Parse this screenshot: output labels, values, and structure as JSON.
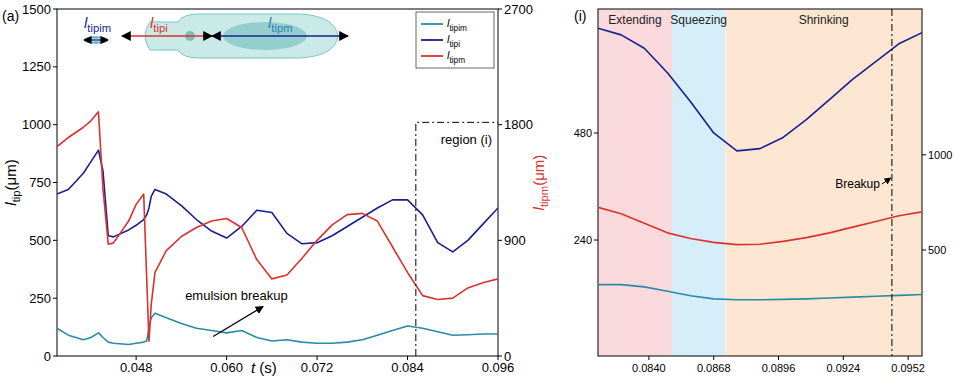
{
  "chart_data": [
    {
      "type": "line",
      "title": "(a)",
      "x_label": "t (s)",
      "y_label": "ltip(μm)",
      "y2_label": "ltipm(μm)",
      "xlim": [
        0.0375,
        0.096
      ],
      "xticks": [
        0.048,
        {
          "value": 0.06,
          "label": "0.060"
        },
        0.072,
        0.084,
        0.096
      ],
      "ylim": [
        0,
        1500
      ],
      "yticks": [
        0,
        250,
        500,
        750,
        1000,
        1250,
        1500
      ],
      "y2lim": [
        0,
        2700
      ],
      "y2ticks": [
        0,
        900,
        1800,
        2700
      ],
      "legend": "upper right",
      "schematic_labels": [
        "ltipim",
        "ltipi",
        "ltipm"
      ],
      "annotations": [
        {
          "text": "emulsion breakup",
          "x": 0.0545,
          "y": 240
        }
      ],
      "region": {
        "label": "region (i)",
        "x": 0.0851,
        "y": 1010
      },
      "x": [
        0.0375,
        0.039,
        0.041,
        0.042,
        0.043,
        0.0436,
        0.0443,
        0.045,
        0.047,
        0.048,
        0.049,
        0.0494,
        0.0497,
        0.05,
        0.0505,
        0.052,
        0.054,
        0.056,
        0.058,
        0.06,
        0.062,
        0.064,
        0.066,
        0.068,
        0.07,
        0.072,
        0.074,
        0.076,
        0.078,
        0.08,
        0.082,
        0.084,
        0.086,
        0.088,
        0.09,
        0.092,
        0.094,
        0.096
      ],
      "series": [
        {
          "name": "ltipim",
          "color": "#2a8ba8",
          "values": [
            120,
            90,
            70,
            80,
            100,
            80,
            60,
            55,
            50,
            55,
            60,
            65,
            120,
            165,
            185,
            165,
            140,
            120,
            110,
            100,
            110,
            80,
            65,
            70,
            60,
            55,
            55,
            60,
            70,
            90,
            110,
            130,
            120,
            105,
            90,
            92,
            95,
            95
          ]
        },
        {
          "name": "ltipi",
          "color": "#1a1f8f",
          "values": [
            700,
            720,
            790,
            840,
            890,
            800,
            520,
            515,
            545,
            565,
            590,
            610,
            640,
            690,
            720,
            700,
            650,
            590,
            540,
            510,
            560,
            630,
            620,
            530,
            485,
            490,
            520,
            560,
            600,
            640,
            675,
            675,
            610,
            490,
            450,
            500,
            570,
            640
          ]
        },
        {
          "name": "ltipm",
          "color": "#d9332f",
          "axis": "y2",
          "values": [
            1630,
            1700,
            1780,
            1830,
            1900,
            1300,
            870,
            880,
            1050,
            1180,
            1260,
            600,
            115,
            400,
            650,
            820,
            930,
            1000,
            1050,
            1070,
            1000,
            750,
            600,
            630,
            760,
            900,
            1020,
            1100,
            1110,
            1050,
            850,
            650,
            470,
            440,
            450,
            530,
            570,
            600
          ]
        }
      ]
    },
    {
      "type": "line",
      "title": "(i)",
      "xlim": [
        0.0818,
        0.0958
      ],
      "xticks": [
        {
          "value": 0.084,
          "label": "0.0840"
        },
        0.0868,
        0.0896,
        0.0924,
        0.0952
      ],
      "ylim": [
        -20,
        758
      ],
      "yticks": [
        240,
        480
      ],
      "y2lim": [
        -57,
        1766
      ],
      "y2ticks": [
        500,
        1000
      ],
      "regions": [
        {
          "label": "Extending",
          "x": [
            0.0818,
            0.085
          ],
          "color": "#fadadd"
        },
        {
          "label": "Squeezing",
          "x": [
            0.085,
            0.0873
          ],
          "color": "#d6eefa"
        },
        {
          "label": "Shrinking",
          "x": [
            0.0873,
            0.0958
          ],
          "color": "#fde6d2"
        }
      ],
      "breakup": {
        "label": "Breakup",
        "x": 0.0945
      },
      "x": [
        0.0818,
        0.0828,
        0.0838,
        0.0848,
        0.0858,
        0.0868,
        0.0878,
        0.0888,
        0.0898,
        0.0908,
        0.0918,
        0.0928,
        0.0938,
        0.0948,
        0.0958
      ],
      "series": [
        {
          "name": "ltipim",
          "color": "#2a8ba8",
          "values": [
            140,
            140,
            135,
            125,
            115,
            108,
            106,
            106,
            107,
            108,
            110,
            112,
            114,
            116,
            118
          ]
        },
        {
          "name": "ltipi",
          "color": "#1a1f8f",
          "values": [
            715,
            700,
            670,
            615,
            550,
            480,
            440,
            445,
            470,
            510,
            555,
            600,
            640,
            680,
            705
          ]
        },
        {
          "name": "ltipm",
          "color": "#d9332f",
          "axis": "y2",
          "values": [
            724,
            690,
            640,
            590,
            560,
            540,
            528,
            530,
            545,
            565,
            590,
            620,
            650,
            680,
            700
          ]
        }
      ]
    }
  ]
}
